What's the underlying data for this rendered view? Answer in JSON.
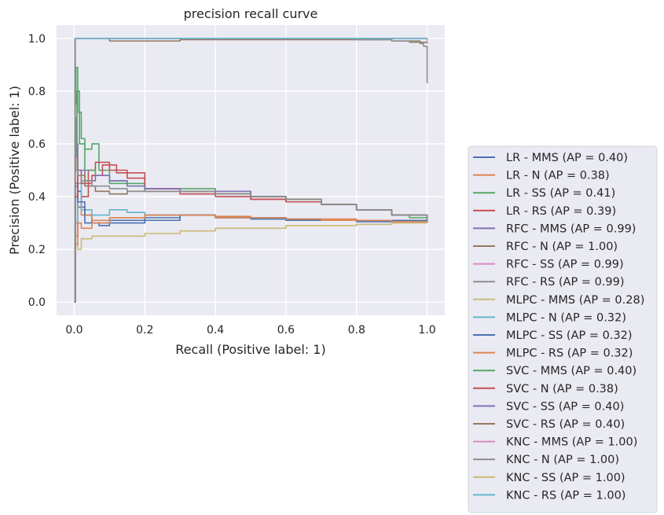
{
  "chart_data": {
    "type": "line",
    "title": "precision recall curve",
    "xlabel": "Recall (Positive label: 1)",
    "ylabel": "Precision (Positive label: 1)",
    "xlim": [
      -0.05,
      1.05
    ],
    "ylim": [
      -0.05,
      1.05
    ],
    "xticks": [
      "0.0",
      "0.2",
      "0.4",
      "0.6",
      "0.8",
      "1.0"
    ],
    "yticks": [
      "0.0",
      "0.2",
      "0.4",
      "0.6",
      "0.8",
      "1.0"
    ],
    "grid": true,
    "legend_position": "outside-right",
    "background": "#eaeaf2",
    "series": [
      {
        "name": "LR - MMS (AP = 0.40)",
        "color": "#4c72b0",
        "x": [
          0,
          0.003,
          0.01,
          0.02,
          0.03,
          0.05,
          0.07,
          0.1,
          0.15,
          0.2,
          0.3,
          0.4,
          0.5,
          0.6,
          0.7,
          0.8,
          0.9,
          0.95,
          1.0
        ],
        "y": [
          0,
          0.5,
          0.42,
          0.36,
          0.33,
          0.3,
          0.29,
          0.3,
          0.3,
          0.31,
          0.33,
          0.32,
          0.315,
          0.31,
          0.31,
          0.305,
          0.305,
          0.305,
          0.305
        ]
      },
      {
        "name": "LR - N (AP = 0.38)",
        "color": "#dd8452",
        "x": [
          0,
          0.003,
          0.01,
          0.02,
          0.05,
          0.1,
          0.2,
          0.3,
          0.4,
          0.5,
          0.6,
          0.7,
          0.8,
          0.9,
          1.0
        ],
        "y": [
          0,
          0.25,
          0.38,
          0.33,
          0.31,
          0.32,
          0.33,
          0.33,
          0.325,
          0.32,
          0.315,
          0.315,
          0.31,
          0.305,
          0.305
        ]
      },
      {
        "name": "LR - SS (AP = 0.41)",
        "color": "#55a868",
        "x": [
          0,
          0.002,
          0.005,
          0.01,
          0.02,
          0.03,
          0.05,
          0.07,
          0.1,
          0.15,
          0.2,
          0.3,
          0.4,
          0.5,
          0.6,
          0.7,
          0.8,
          0.9,
          0.95,
          1.0
        ],
        "y": [
          0,
          0.75,
          0.89,
          0.72,
          0.62,
          0.58,
          0.6,
          0.5,
          0.46,
          0.45,
          0.43,
          0.43,
          0.42,
          0.4,
          0.39,
          0.37,
          0.35,
          0.33,
          0.32,
          0.305
        ]
      },
      {
        "name": "LR - RS (AP = 0.39)",
        "color": "#c44e52",
        "x": [
          0,
          0.003,
          0.01,
          0.02,
          0.04,
          0.06,
          0.1,
          0.15,
          0.2,
          0.3,
          0.4,
          0.5,
          0.6,
          0.7,
          0.8,
          0.9,
          1.0
        ],
        "y": [
          0,
          0.45,
          0.36,
          0.4,
          0.5,
          0.53,
          0.5,
          0.47,
          0.43,
          0.42,
          0.41,
          0.39,
          0.38,
          0.37,
          0.35,
          0.33,
          0.305
        ]
      },
      {
        "name": "RFC - MMS (AP = 0.99)",
        "color": "#8172b3",
        "x": [
          0,
          0.002,
          0.01,
          0.5,
          0.95,
          1.0
        ],
        "y": [
          0,
          1.0,
          1.0,
          1.0,
          1.0,
          0.99
        ]
      },
      {
        "name": "RFC - N (AP = 1.00)",
        "color": "#937860",
        "x": [
          0,
          0.002,
          0.005,
          0.1,
          0.1,
          0.3,
          0.6,
          0.9,
          0.98,
          1.0
        ],
        "y": [
          0,
          1.0,
          1.0,
          1.0,
          0.99,
          0.995,
          0.995,
          0.99,
          0.985,
          0.98
        ]
      },
      {
        "name": "RFC - SS (AP = 0.99)",
        "color": "#da8bc3",
        "x": [
          0,
          0.002,
          0.01,
          0.5,
          0.95,
          1.0
        ],
        "y": [
          0,
          1.0,
          1.0,
          1.0,
          1.0,
          0.99
        ]
      },
      {
        "name": "RFC - RS (AP = 0.99)",
        "color": "#8c8c8c",
        "x": [
          0,
          0.002,
          0.01,
          0.5,
          0.8,
          0.9,
          0.95,
          0.98,
          0.99,
          1.0
        ],
        "y": [
          0,
          1.0,
          1.0,
          1.0,
          0.995,
          0.99,
          0.985,
          0.98,
          0.97,
          0.83
        ]
      },
      {
        "name": "MLPC - MMS (AP = 0.28)",
        "color": "#ccb974",
        "x": [
          0,
          0.003,
          0.01,
          0.02,
          0.05,
          0.1,
          0.2,
          0.3,
          0.4,
          0.5,
          0.6,
          0.7,
          0.8,
          0.9,
          1.0
        ],
        "y": [
          0.15,
          0.22,
          0.2,
          0.24,
          0.25,
          0.25,
          0.26,
          0.27,
          0.28,
          0.28,
          0.29,
          0.29,
          0.295,
          0.3,
          0.305
        ]
      },
      {
        "name": "MLPC - N (AP = 0.32)",
        "color": "#64b5cd",
        "x": [
          0,
          0.003,
          0.01,
          0.02,
          0.05,
          0.1,
          0.15,
          0.2,
          0.3,
          0.4,
          0.5,
          0.6,
          0.7,
          0.8,
          0.9,
          1.0
        ],
        "y": [
          0,
          0.3,
          0.45,
          0.35,
          0.33,
          0.35,
          0.34,
          0.33,
          0.33,
          0.32,
          0.32,
          0.315,
          0.31,
          0.31,
          0.305,
          0.305
        ]
      },
      {
        "name": "MLPC - SS (AP = 0.32)",
        "color": "#4c72b0",
        "x": [
          0,
          0.003,
          0.01,
          0.03,
          0.06,
          0.1,
          0.2,
          0.3,
          0.4,
          0.5,
          0.6,
          0.8,
          1.0
        ],
        "y": [
          0,
          0.44,
          0.38,
          0.3,
          0.3,
          0.31,
          0.32,
          0.33,
          0.32,
          0.32,
          0.31,
          0.31,
          0.305
        ]
      },
      {
        "name": "MLPC - RS (AP = 0.32)",
        "color": "#dd8452",
        "x": [
          0,
          0.003,
          0.01,
          0.02,
          0.05,
          0.1,
          0.2,
          0.3,
          0.4,
          0.5,
          0.6,
          0.7,
          0.8,
          0.9,
          1.0
        ],
        "y": [
          0,
          0.22,
          0.3,
          0.28,
          0.3,
          0.32,
          0.33,
          0.33,
          0.32,
          0.32,
          0.315,
          0.31,
          0.31,
          0.305,
          0.305
        ]
      },
      {
        "name": "SVC - MMS (AP = 0.40)",
        "color": "#55a868",
        "x": [
          0,
          0.003,
          0.008,
          0.015,
          0.03,
          0.06,
          0.1,
          0.15,
          0.2,
          0.3,
          0.4,
          0.5,
          0.6,
          0.7,
          0.8,
          0.9,
          1.0
        ],
        "y": [
          0,
          0.55,
          0.8,
          0.6,
          0.5,
          0.48,
          0.45,
          0.44,
          0.42,
          0.42,
          0.41,
          0.4,
          0.39,
          0.37,
          0.35,
          0.33,
          0.305
        ]
      },
      {
        "name": "SVC - N (AP = 0.38)",
        "color": "#c44e52",
        "x": [
          0,
          0.003,
          0.01,
          0.02,
          0.05,
          0.08,
          0.12,
          0.2,
          0.3,
          0.4,
          0.5,
          0.6,
          0.7,
          0.8,
          0.9,
          1.0
        ],
        "y": [
          0,
          0.4,
          0.5,
          0.45,
          0.48,
          0.52,
          0.49,
          0.43,
          0.41,
          0.4,
          0.39,
          0.38,
          0.37,
          0.35,
          0.33,
          0.305
        ]
      },
      {
        "name": "SVC - SS (AP = 0.40)",
        "color": "#8172b3",
        "x": [
          0,
          0.003,
          0.01,
          0.03,
          0.06,
          0.1,
          0.15,
          0.2,
          0.3,
          0.4,
          0.5,
          0.6,
          0.7,
          0.8,
          0.9,
          1.0
        ],
        "y": [
          0,
          0.6,
          0.5,
          0.46,
          0.48,
          0.46,
          0.44,
          0.43,
          0.42,
          0.42,
          0.4,
          0.39,
          0.37,
          0.35,
          0.33,
          0.305
        ]
      },
      {
        "name": "SVC - RS (AP = 0.40)",
        "color": "#937860",
        "x": [
          0,
          0.003,
          0.01,
          0.03,
          0.06,
          0.1,
          0.15,
          0.2,
          0.3,
          0.4,
          0.5,
          0.6,
          0.7,
          0.8,
          0.9,
          1.0
        ],
        "y": [
          0,
          0.55,
          0.48,
          0.44,
          0.42,
          0.41,
          0.42,
          0.42,
          0.42,
          0.41,
          0.4,
          0.39,
          0.37,
          0.35,
          0.33,
          0.305
        ]
      },
      {
        "name": "KNC - MMS (AP = 1.00)",
        "color": "#da8bc3",
        "x": [
          0,
          0.002,
          0.01,
          0.5,
          1.0
        ],
        "y": [
          0,
          1.0,
          1.0,
          1.0,
          1.0
        ]
      },
      {
        "name": "KNC - N (AP = 1.00)",
        "color": "#8c8c8c",
        "x": [
          0,
          0.002,
          0.003,
          0.005,
          0.01,
          0.02,
          0.05,
          0.1,
          0.15,
          0.2,
          0.3,
          0.4,
          0.5,
          0.6,
          0.7,
          0.8,
          0.9,
          1.0
        ],
        "y": [
          0,
          1.0,
          0.7,
          0.5,
          0.48,
          0.46,
          0.44,
          0.43,
          0.42,
          0.42,
          0.42,
          0.41,
          0.4,
          0.39,
          0.37,
          0.35,
          0.33,
          0.305
        ]
      },
      {
        "name": "KNC - SS (AP = 1.00)",
        "color": "#ccb974",
        "x": [
          0,
          0.002,
          0.5,
          1.0
        ],
        "y": [
          1.0,
          1.0,
          1.0,
          1.0
        ]
      },
      {
        "name": "KNC - RS (AP = 1.00)",
        "color": "#64b5cd",
        "x": [
          0,
          0.002,
          0.5,
          1.0
        ],
        "y": [
          1.0,
          1.0,
          1.0,
          1.0
        ]
      }
    ]
  }
}
